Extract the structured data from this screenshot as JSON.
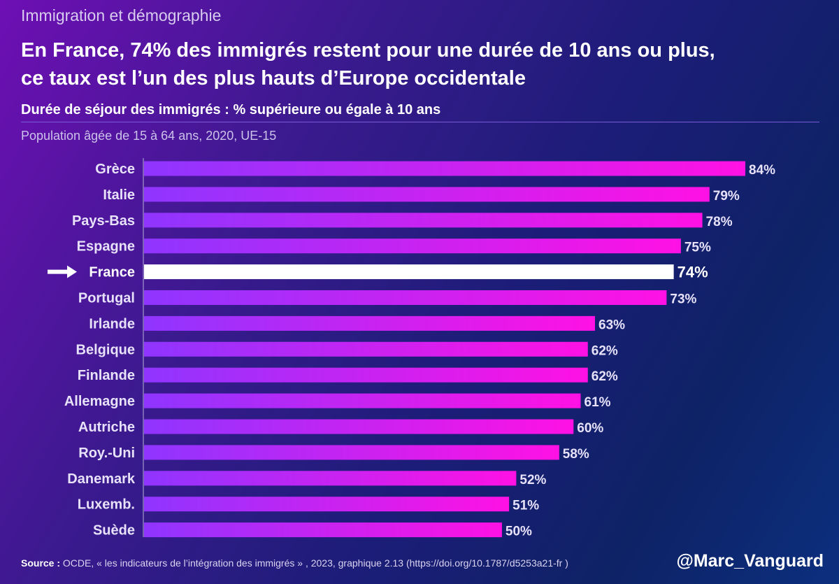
{
  "header": {
    "kicker": "Immigration et démographie",
    "title_line1": "En France, 74% des immigrés restent pour une durée de 10 ans ou plus,",
    "title_line2": "ce taux est l’un des plus hauts d’Europe occidentale",
    "subtitle": "Durée de séjour des immigrés : % supérieure ou égale à 10 ans",
    "note": "Population âgée de 15 à 64 ans, 2020, UE-15"
  },
  "chart_data": {
    "type": "bar",
    "orientation": "horizontal",
    "categories": [
      "Grèce",
      "Italie",
      "Pays-Bas",
      "Espagne",
      "France",
      "Portugal",
      "Irlande",
      "Belgique",
      "Finlande",
      "Allemagne",
      "Autriche",
      "Roy.-Uni",
      "Danemark",
      "Luxemb.",
      "Suède"
    ],
    "values": [
      84,
      79,
      78,
      75,
      74,
      73,
      63,
      62,
      62,
      61,
      60,
      58,
      52,
      51,
      50
    ],
    "value_labels": [
      "84%",
      "79%",
      "78%",
      "75%",
      "74%",
      "73%",
      "63%",
      "62%",
      "62%",
      "61%",
      "60%",
      "58%",
      "52%",
      "51%",
      "50%"
    ],
    "highlight": "France",
    "xlim": [
      0,
      84
    ],
    "unit": "%",
    "colors": {
      "bar_start": "#8f35ff",
      "bar_end": "#ff11e4",
      "highlight_bar": "#ffffff",
      "label_text": "#e7e2fa",
      "axis_line": "#b7afd6",
      "arrow": "#ffffff"
    }
  },
  "footer": {
    "source_label": "Source :",
    "source_text": " OCDE, « les indicateurs de l’intégration des immigrés » , 2023, graphique 2.13 (https://doi.org/10.1787/d5253a21-fr )",
    "handle": "@Marc_Vanguard"
  }
}
